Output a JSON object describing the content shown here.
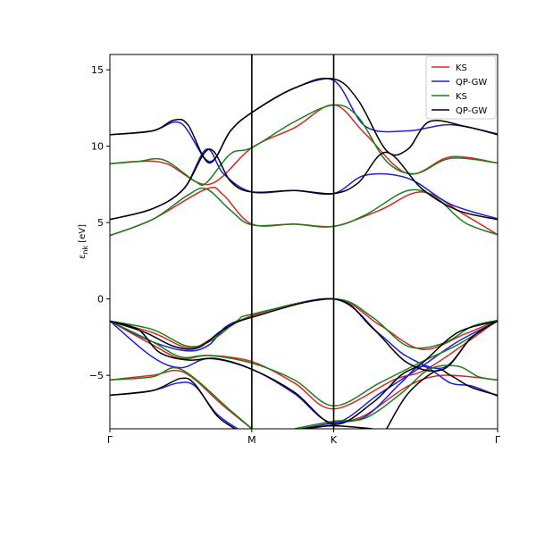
{
  "chart_data": {
    "type": "line",
    "title": "",
    "ylabel": "ε_nk [eV]",
    "ylabel_symbol": "ε",
    "ylabel_sub": "nk",
    "ylabel_unit": "[eV]",
    "xlabel": "",
    "x_ticks": [
      {
        "label": "Γ",
        "x": 0.0
      },
      {
        "label": "M",
        "x": 1.0
      },
      {
        "label": "K",
        "x": 1.577
      },
      {
        "label": "Γ",
        "x": 2.732
      }
    ],
    "xlim": [
      0.0,
      2.732
    ],
    "ylim": [
      -8.5,
      16.0
    ],
    "y_ticks": [
      -5,
      0,
      5,
      10,
      15
    ],
    "y_tick_labels": [
      "−5",
      "0",
      "5",
      "10",
      "15"
    ],
    "grid": false,
    "vertical_lines_at": [
      1.0,
      1.577
    ],
    "legend": {
      "position": "top-right",
      "entries": [
        {
          "label": "KS",
          "color": "#d62728"
        },
        {
          "label": "QP-GW",
          "color": "#1f1fd6"
        },
        {
          "label": "KS",
          "color": "#1a7f1a"
        },
        {
          "label": "QP-GW",
          "color": "#000000"
        }
      ]
    },
    "series": [
      {
        "color": "#d62728",
        "lines": [
          [
            [
              0,
              8.85
            ],
            [
              0.2,
              9.0
            ],
            [
              0.4,
              8.85
            ],
            [
              0.7,
              7.5
            ],
            [
              1.0,
              9.9
            ],
            [
              1.3,
              11.2
            ],
            [
              1.577,
              12.7
            ],
            [
              1.8,
              10.8
            ],
            [
              2.1,
              8.2
            ],
            [
              2.4,
              9.3
            ],
            [
              2.732,
              8.9
            ]
          ],
          [
            [
              0,
              4.15
            ],
            [
              0.3,
              5.2
            ],
            [
              0.68,
              7.2
            ],
            [
              0.8,
              6.8
            ],
            [
              1.0,
              4.9
            ],
            [
              1.3,
              4.9
            ],
            [
              1.577,
              4.75
            ],
            [
              1.9,
              5.8
            ],
            [
              2.2,
              7.0
            ],
            [
              2.5,
              5.5
            ],
            [
              2.732,
              4.2
            ]
          ],
          [
            [
              0,
              -1.45
            ],
            [
              0.3,
              -2.2
            ],
            [
              0.55,
              -3.2
            ],
            [
              0.72,
              -2.6
            ],
            [
              1.0,
              -1.1
            ],
            [
              1.577,
              0.0
            ],
            [
              1.9,
              -1.7
            ],
            [
              2.2,
              -3.3
            ],
            [
              2.5,
              -2.3
            ],
            [
              2.732,
              -1.4
            ]
          ],
          [
            [
              0,
              -1.45
            ],
            [
              0.3,
              -3.0
            ],
            [
              0.5,
              -3.9
            ],
            [
              0.7,
              -3.7
            ],
            [
              1.0,
              -4.1
            ],
            [
              1.3,
              -5.5
            ],
            [
              1.577,
              -7.2
            ],
            [
              2.0,
              -5.3
            ],
            [
              2.25,
              -4.5
            ],
            [
              2.732,
              -1.4
            ]
          ],
          [
            [
              0,
              -5.3
            ],
            [
              0.3,
              -5.0
            ],
            [
              0.52,
              -4.8
            ],
            [
              0.8,
              -7.0
            ],
            [
              1.0,
              -8.5
            ]
          ],
          [
            [
              1.4,
              -8.5
            ],
            [
              1.577,
              -8.2
            ],
            [
              1.8,
              -7.6
            ],
            [
              2.1,
              -5.7
            ],
            [
              2.35,
              -5.0
            ],
            [
              2.732,
              -5.3
            ]
          ]
        ]
      },
      {
        "color": "#1f1fd6",
        "lines": [
          [
            [
              0,
              10.75
            ],
            [
              0.3,
              11.0
            ],
            [
              0.5,
              11.5
            ],
            [
              0.7,
              9.0
            ],
            [
              0.85,
              11.0
            ],
            [
              1.0,
              12.2
            ],
            [
              1.3,
              13.8
            ],
            [
              1.577,
              14.3
            ],
            [
              1.8,
              11.3
            ],
            [
              2.1,
              11.0
            ],
            [
              2.4,
              11.4
            ],
            [
              2.732,
              10.8
            ]
          ],
          [
            [
              0,
              5.2
            ],
            [
              0.3,
              5.9
            ],
            [
              0.52,
              7.2
            ],
            [
              0.68,
              9.8
            ],
            [
              0.8,
              8.2
            ],
            [
              1.0,
              7.0
            ],
            [
              1.3,
              7.1
            ],
            [
              1.577,
              6.9
            ],
            [
              1.8,
              8.1
            ],
            [
              2.1,
              7.9
            ],
            [
              2.4,
              6.2
            ],
            [
              2.732,
              5.25
            ]
          ],
          [
            [
              0,
              -1.45
            ],
            [
              0.3,
              -2.8
            ],
            [
              0.55,
              -3.4
            ],
            [
              0.7,
              -3.0
            ],
            [
              0.82,
              -1.8
            ],
            [
              1.0,
              -1.2
            ],
            [
              1.577,
              0.0
            ],
            [
              1.9,
              -2.3
            ],
            [
              2.1,
              -3.8
            ],
            [
              2.35,
              -4.5
            ],
            [
              2.55,
              -2.5
            ],
            [
              2.732,
              -1.45
            ]
          ],
          [
            [
              0,
              -1.45
            ],
            [
              0.3,
              -3.8
            ],
            [
              0.5,
              -4.5
            ],
            [
              0.7,
              -3.9
            ],
            [
              1.0,
              -4.6
            ],
            [
              1.3,
              -6.2
            ],
            [
              1.577,
              -8.1
            ],
            [
              1.9,
              -6.2
            ],
            [
              2.2,
              -4.4
            ],
            [
              2.45,
              -2.8
            ],
            [
              2.732,
              -1.45
            ]
          ],
          [
            [
              0,
              -6.3
            ],
            [
              0.3,
              -6.0
            ],
            [
              0.48,
              -5.5
            ],
            [
              0.6,
              -5.7
            ],
            [
              0.75,
              -7.5
            ],
            [
              0.9,
              -8.5
            ]
          ],
          [
            [
              1.35,
              -8.5
            ],
            [
              1.577,
              -8.1
            ],
            [
              1.8,
              -7.7
            ],
            [
              2.05,
              -5.5
            ],
            [
              2.2,
              -4.4
            ],
            [
              2.4,
              -5.5
            ],
            [
              2.55,
              -5.7
            ],
            [
              2.732,
              -6.35
            ]
          ]
        ]
      },
      {
        "color": "#1a7f1a",
        "lines": [
          [
            [
              0,
              8.85
            ],
            [
              0.2,
              9.0
            ],
            [
              0.38,
              9.1
            ],
            [
              0.6,
              7.7
            ],
            [
              0.68,
              7.6
            ],
            [
              0.85,
              9.5
            ],
            [
              1.0,
              9.9
            ],
            [
              1.3,
              11.6
            ],
            [
              1.577,
              12.7
            ],
            [
              1.75,
              11.9
            ],
            [
              1.95,
              9.0
            ],
            [
              2.15,
              8.2
            ],
            [
              2.4,
              9.2
            ],
            [
              2.732,
              8.9
            ]
          ],
          [
            [
              0,
              4.15
            ],
            [
              0.3,
              5.2
            ],
            [
              0.55,
              6.8
            ],
            [
              0.68,
              7.2
            ],
            [
              0.85,
              5.8
            ],
            [
              1.0,
              4.85
            ],
            [
              1.3,
              4.9
            ],
            [
              1.577,
              4.75
            ],
            [
              1.8,
              5.5
            ],
            [
              2.1,
              7.1
            ],
            [
              2.3,
              6.6
            ],
            [
              2.5,
              5.0
            ],
            [
              2.732,
              4.2
            ]
          ],
          [
            [
              0,
              -1.45
            ],
            [
              0.3,
              -2.0
            ],
            [
              0.55,
              -3.1
            ],
            [
              0.72,
              -2.7
            ],
            [
              0.9,
              -1.4
            ],
            [
              1.0,
              -1.0
            ],
            [
              1.577,
              0.0
            ],
            [
              1.85,
              -1.2
            ],
            [
              2.1,
              -3.1
            ],
            [
              2.35,
              -2.9
            ],
            [
              2.55,
              -1.8
            ],
            [
              2.732,
              -1.4
            ]
          ],
          [
            [
              0,
              -1.45
            ],
            [
              0.3,
              -2.8
            ],
            [
              0.5,
              -3.8
            ],
            [
              0.7,
              -3.7
            ],
            [
              1.0,
              -4.2
            ],
            [
              1.3,
              -5.3
            ],
            [
              1.577,
              -7.0
            ],
            [
              1.9,
              -5.5
            ],
            [
              2.2,
              -4.1
            ],
            [
              2.45,
              -3.0
            ],
            [
              2.732,
              -1.4
            ]
          ],
          [
            [
              0,
              -5.3
            ],
            [
              0.3,
              -5.1
            ],
            [
              0.5,
              -4.6
            ],
            [
              0.85,
              -7.3
            ],
            [
              1.0,
              -8.5
            ]
          ],
          [
            [
              1.3,
              -8.5
            ],
            [
              1.577,
              -8.0
            ],
            [
              1.8,
              -7.8
            ],
            [
              2.05,
              -6.2
            ],
            [
              2.25,
              -4.6
            ],
            [
              2.45,
              -4.4
            ],
            [
              2.6,
              -5.1
            ],
            [
              2.732,
              -5.3
            ]
          ]
        ]
      },
      {
        "color": "#000000",
        "lines": [
          [
            [
              0,
              10.75
            ],
            [
              0.3,
              11.0
            ],
            [
              0.45,
              11.7
            ],
            [
              0.55,
              11.4
            ],
            [
              0.7,
              8.9
            ],
            [
              0.85,
              11.0
            ],
            [
              1.0,
              12.2
            ],
            [
              1.3,
              13.8
            ],
            [
              1.577,
              14.4
            ],
            [
              1.75,
              13.0
            ],
            [
              1.95,
              9.7
            ],
            [
              2.1,
              9.8
            ],
            [
              2.25,
              11.6
            ],
            [
              2.5,
              11.3
            ],
            [
              2.732,
              10.75
            ]
          ],
          [
            [
              0,
              5.2
            ],
            [
              0.3,
              5.9
            ],
            [
              0.52,
              7.2
            ],
            [
              0.7,
              9.8
            ],
            [
              0.85,
              7.7
            ],
            [
              1.0,
              7.0
            ],
            [
              1.3,
              7.1
            ],
            [
              1.577,
              6.9
            ],
            [
              1.75,
              7.6
            ],
            [
              1.95,
              9.6
            ],
            [
              2.2,
              7.2
            ],
            [
              2.45,
              5.8
            ],
            [
              2.732,
              5.2
            ]
          ],
          [
            [
              0,
              -1.45
            ],
            [
              0.25,
              -2.2
            ],
            [
              0.45,
              -3.1
            ],
            [
              0.62,
              -3.2
            ],
            [
              0.8,
              -2.0
            ],
            [
              1.0,
              -1.2
            ],
            [
              1.577,
              0.0
            ],
            [
              1.85,
              -1.9
            ],
            [
              2.1,
              -4.2
            ],
            [
              2.35,
              -4.6
            ],
            [
              2.55,
              -2.5
            ],
            [
              2.732,
              -1.45
            ]
          ],
          [
            [
              0,
              -1.45
            ],
            [
              0.2,
              -2.0
            ],
            [
              0.35,
              -3.5
            ],
            [
              0.55,
              -4.0
            ],
            [
              0.75,
              -3.9
            ],
            [
              1.0,
              -4.6
            ],
            [
              1.3,
              -6.1
            ],
            [
              1.577,
              -8.2
            ],
            [
              1.85,
              -6.8
            ],
            [
              2.05,
              -5.0
            ],
            [
              2.2,
              -4.2
            ],
            [
              2.45,
              -2.2
            ],
            [
              2.732,
              -1.45
            ]
          ],
          [
            [
              0,
              -6.3
            ],
            [
              0.3,
              -6.0
            ],
            [
              0.5,
              -5.2
            ],
            [
              0.6,
              -5.6
            ],
            [
              0.75,
              -7.6
            ],
            [
              0.88,
              -8.5
            ]
          ],
          [
            [
              1.35,
              -8.5
            ],
            [
              1.577,
              -8.3
            ],
            [
              1.85,
              -8.5
            ]
          ],
          [
            [
              1.95,
              -8.5
            ],
            [
              2.1,
              -6.2
            ],
            [
              2.3,
              -4.7
            ],
            [
              2.4,
              -5.0
            ],
            [
              2.55,
              -5.8
            ],
            [
              2.732,
              -6.3
            ]
          ]
        ]
      }
    ]
  }
}
